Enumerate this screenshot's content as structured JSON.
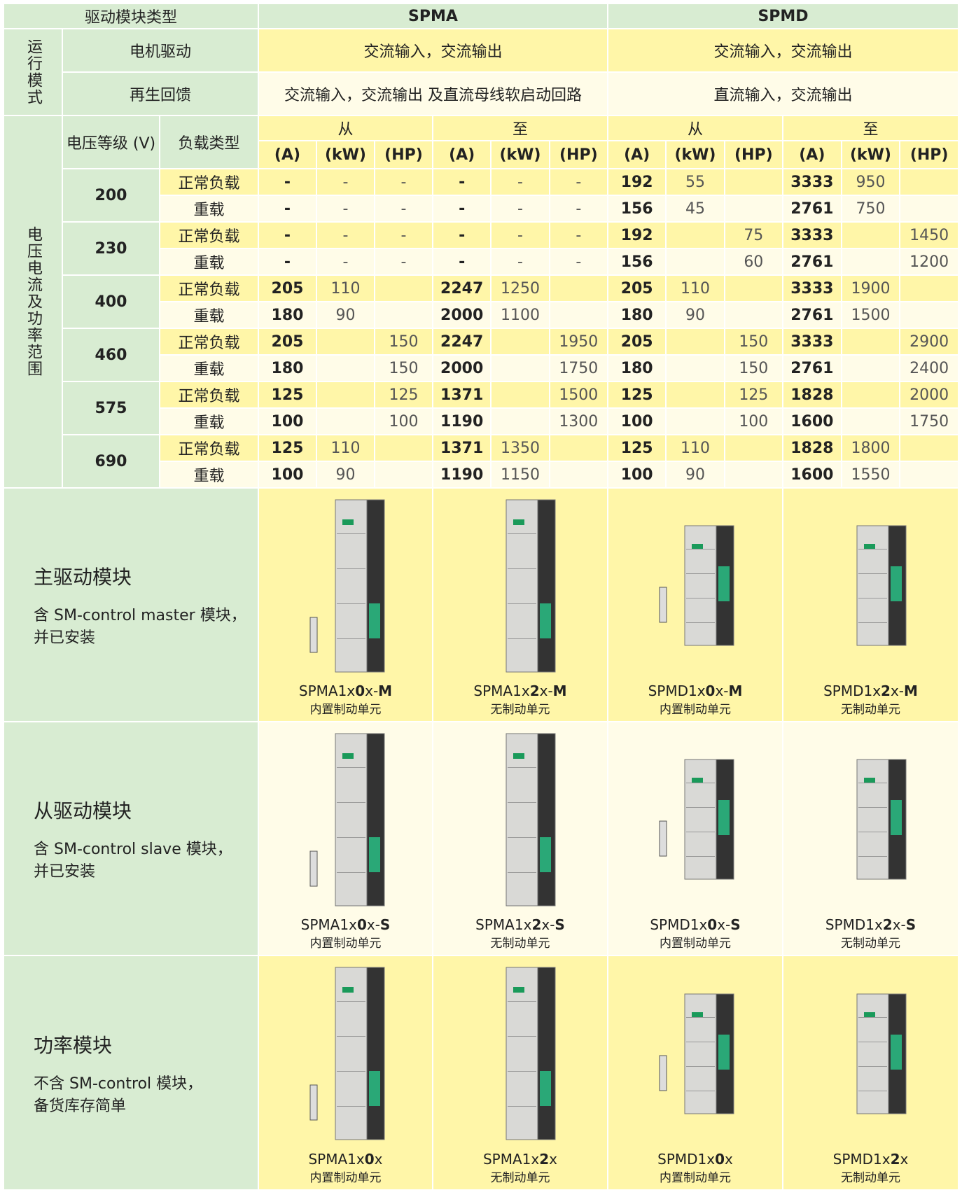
{
  "header": {
    "type_label": "驱动模块类型",
    "groups": [
      "SPMA",
      "SPMD"
    ]
  },
  "mode": {
    "label": "运行模式",
    "rows": [
      {
        "label": "电机驱动",
        "spma": "交流输入，交流输出",
        "spmd": "交流输入，交流输出"
      },
      {
        "label": "再生回馈",
        "spma": "交流输入，交流输出 及直流母线软启动回路",
        "spmd": "直流输入，交流输出"
      }
    ]
  },
  "ratings": {
    "label": "电压电流及功率范围",
    "voltage_label": "电压等级 (V)",
    "load_label": "负载类型",
    "range_labels": [
      "从",
      "至",
      "从",
      "至"
    ],
    "units": [
      "(A)",
      "(kW)",
      "(HP)"
    ],
    "groups": [
      {
        "voltage": 200,
        "rows": [
          {
            "load": "正常负载",
            "values": [
              "-",
              "-",
              "-",
              "-",
              "-",
              "-",
              192,
              55,
              null,
              3333,
              950,
              null
            ]
          },
          {
            "load": "重载",
            "values": [
              "-",
              "-",
              "-",
              "-",
              "-",
              "-",
              156,
              45,
              null,
              2761,
              750,
              null
            ]
          }
        ]
      },
      {
        "voltage": 230,
        "rows": [
          {
            "load": "正常负载",
            "values": [
              "-",
              "-",
              "-",
              "-",
              "-",
              "-",
              192,
              null,
              75,
              3333,
              null,
              1450
            ]
          },
          {
            "load": "重载",
            "values": [
              "-",
              "-",
              "-",
              "-",
              "-",
              "-",
              156,
              null,
              60,
              2761,
              null,
              1200
            ]
          }
        ]
      },
      {
        "voltage": 400,
        "rows": [
          {
            "load": "正常负载",
            "values": [
              205,
              110,
              null,
              2247,
              1250,
              null,
              205,
              110,
              null,
              3333,
              1900,
              null
            ]
          },
          {
            "load": "重载",
            "values": [
              180,
              90,
              null,
              2000,
              1100,
              null,
              180,
              90,
              null,
              2761,
              1500,
              null
            ]
          }
        ]
      },
      {
        "voltage": 460,
        "rows": [
          {
            "load": "正常负载",
            "values": [
              205,
              null,
              150,
              2247,
              null,
              1950,
              205,
              null,
              150,
              3333,
              null,
              2900
            ]
          },
          {
            "load": "重载",
            "values": [
              180,
              null,
              150,
              2000,
              null,
              1750,
              180,
              null,
              150,
              2761,
              null,
              2400
            ]
          }
        ]
      },
      {
        "voltage": 575,
        "rows": [
          {
            "load": "正常负载",
            "values": [
              125,
              null,
              125,
              1371,
              null,
              1500,
              125,
              null,
              125,
              1828,
              null,
              2000
            ]
          },
          {
            "load": "重载",
            "values": [
              100,
              null,
              100,
              1190,
              null,
              1300,
              100,
              null,
              100,
              1600,
              null,
              1750
            ]
          }
        ]
      },
      {
        "voltage": 690,
        "rows": [
          {
            "load": "正常负载",
            "values": [
              125,
              110,
              null,
              1371,
              1350,
              null,
              125,
              110,
              null,
              1828,
              1800,
              null
            ]
          },
          {
            "load": "重载",
            "values": [
              100,
              90,
              null,
              1190,
              1150,
              null,
              100,
              90,
              null,
              1600,
              1550,
              null
            ]
          }
        ]
      }
    ]
  },
  "modules": [
    {
      "title": "主驱动模块",
      "description": [
        "含 SM-control master 模块，",
        "并已安装"
      ],
      "items": [
        {
          "model": [
            "SPMA1x",
            "0",
            "x-",
            "M"
          ],
          "note": "内置制动单元"
        },
        {
          "model": [
            "SPMA1x",
            "2",
            "x-",
            "M"
          ],
          "note": "无制动单元"
        },
        {
          "model": [
            "SPMD1x",
            "0",
            "x-",
            "M"
          ],
          "note": "内置制动单元"
        },
        {
          "model": [
            "SPMD1x",
            "2",
            "x-",
            "M"
          ],
          "note": "无制动单元"
        }
      ]
    },
    {
      "title": "从驱动模块",
      "description": [
        "含 SM-control slave 模块，",
        "并已安装"
      ],
      "items": [
        {
          "model": [
            "SPMA1x",
            "0",
            "x-",
            "S"
          ],
          "note": "内置制动单元"
        },
        {
          "model": [
            "SPMA1x",
            "2",
            "x-",
            "S"
          ],
          "note": "无制动单元"
        },
        {
          "model": [
            "SPMD1x",
            "0",
            "x-",
            "S"
          ],
          "note": "内置制动单元"
        },
        {
          "model": [
            "SPMD1x",
            "2",
            "x-",
            "S"
          ],
          "note": "无制动单元"
        }
      ]
    },
    {
      "title": "功率模块",
      "description": [
        "不含 SM-control 模块，",
        "备货库存简单"
      ],
      "items": [
        {
          "model": [
            "SPMA1x",
            "0",
            "x"
          ],
          "note": "内置制动单元"
        },
        {
          "model": [
            "SPMA1x",
            "2",
            "x"
          ],
          "note": "无制动单元"
        },
        {
          "model": [
            "SPMD1x",
            "0",
            "x"
          ],
          "note": "内置制动单元"
        },
        {
          "model": [
            "SPMD1x",
            "2",
            "x"
          ],
          "note": "无制动单元"
        }
      ]
    }
  ]
}
